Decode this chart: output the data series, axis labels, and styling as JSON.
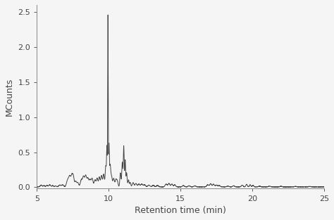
{
  "title": "",
  "xlabel": "Retention time (min)",
  "ylabel": "MCounts",
  "xlim": [
    5,
    25
  ],
  "ylim": [
    -0.02,
    2.6
  ],
  "yticks": [
    0.0,
    0.5,
    1.0,
    1.5,
    2.0,
    2.5
  ],
  "xticks": [
    5,
    10,
    15,
    20,
    25
  ],
  "line_color": "#444444",
  "line_width": 0.7,
  "bg_color": "#f5f5f5",
  "figsize": [
    4.74,
    3.13
  ],
  "dpi": 100
}
